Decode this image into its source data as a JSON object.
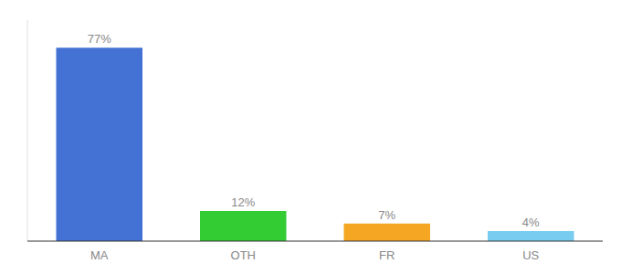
{
  "chart_data": {
    "type": "bar",
    "categories": [
      "MA",
      "OTH",
      "FR",
      "US"
    ],
    "values": [
      77,
      12,
      7,
      4
    ],
    "value_labels": [
      "77%",
      "12%",
      "7%",
      "4%"
    ],
    "colors": [
      "#4472d4",
      "#33cc33",
      "#f5a623",
      "#77ccf0"
    ],
    "ylim": [
      0,
      88
    ],
    "data_labels": true,
    "tick_labels": "x",
    "grid": false
  }
}
